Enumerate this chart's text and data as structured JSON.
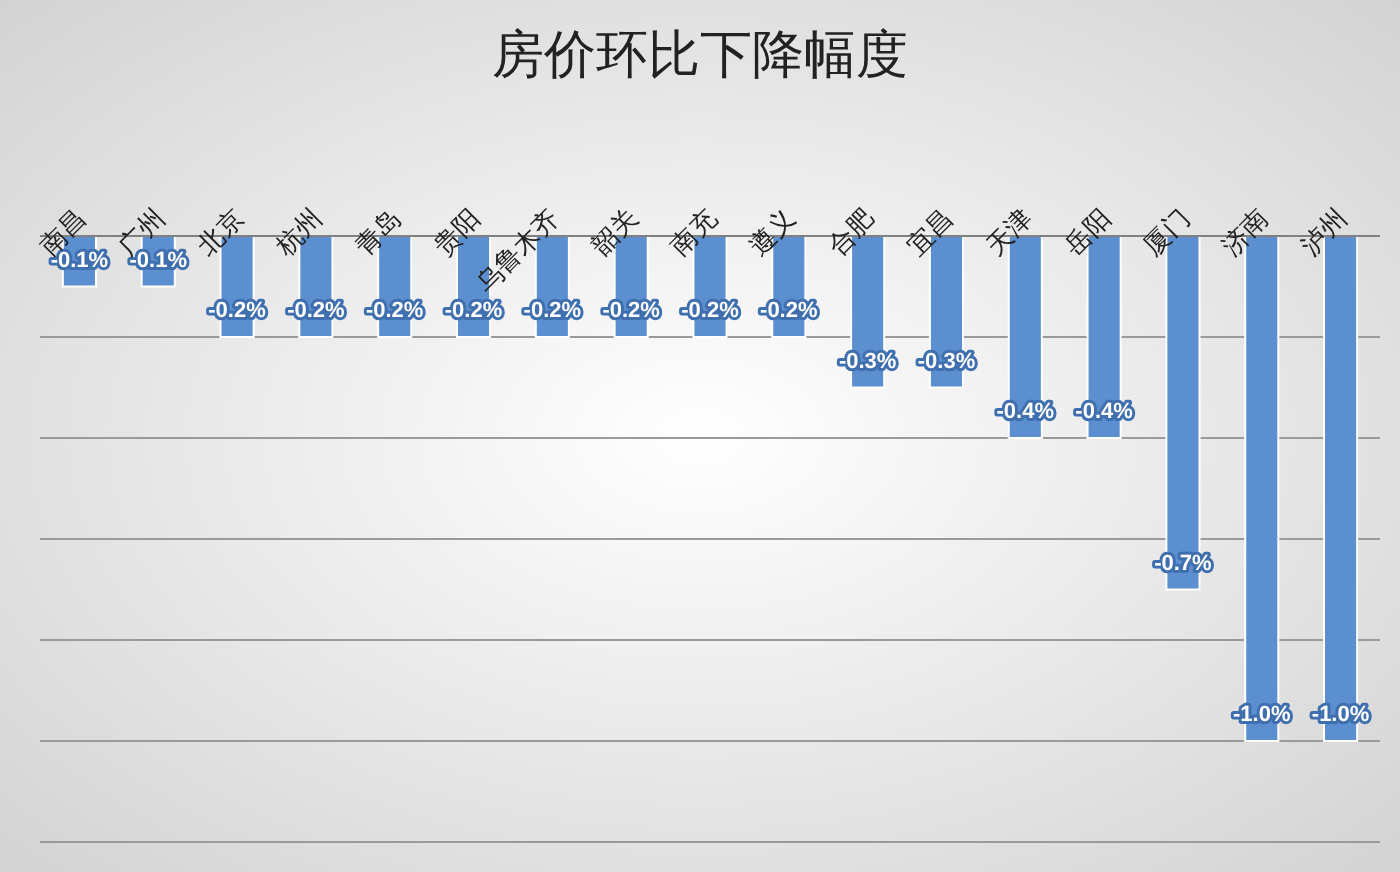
{
  "chart_data": {
    "type": "bar",
    "title": "房价环比下降幅度",
    "categories": [
      "南昌",
      "广州",
      "北京",
      "杭州",
      "青岛",
      "贵阳",
      "乌鲁木齐",
      "韶关",
      "南充",
      "遵义",
      "合肥",
      "宜昌",
      "天津",
      "岳阳",
      "厦门",
      "济南",
      "泸州"
    ],
    "values": [
      -0.1,
      -0.1,
      -0.2,
      -0.2,
      -0.2,
      -0.2,
      -0.2,
      -0.2,
      -0.2,
      -0.2,
      -0.3,
      -0.3,
      -0.4,
      -0.4,
      -0.7,
      -1.0,
      -1.0
    ],
    "value_labels": [
      "-0.1%",
      "-0.1%",
      "-0.2%",
      "-0.2%",
      "-0.2%",
      "-0.2%",
      "-0.2%",
      "-0.2%",
      "-0.2%",
      "-0.2%",
      "-0.3%",
      "-0.3%",
      "-0.4%",
      "-0.4%",
      "-0.7%",
      "-1.0%",
      "-1.0%"
    ],
    "color": "#5b8fd0",
    "ylim": [
      -1.2,
      0
    ],
    "yticks": [
      {
        "value": -1.2,
        "label": null
      },
      {
        "value": -1.0,
        "label": null
      },
      {
        "value": -0.8,
        "label": null
      },
      {
        "value": -0.6,
        "label": null
      },
      {
        "value": -0.4,
        "label": null
      },
      {
        "value": -0.2,
        "label": null
      },
      {
        "value": 0,
        "label": null
      }
    ],
    "grid": "y",
    "tick_labels": "x"
  }
}
